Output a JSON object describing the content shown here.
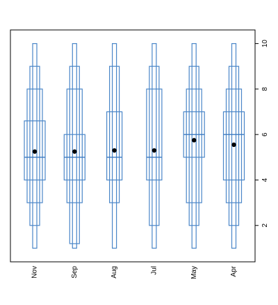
{
  "chart_data": {
    "type": "letter-value boxplot",
    "categories": [
      "Nov",
      "Sep",
      "Aug",
      "Jul",
      "May",
      "Apr"
    ],
    "y_axis": {
      "position": "right",
      "ticks": [
        2,
        4,
        6,
        8,
        10
      ],
      "ylim": [
        0.4,
        10.6
      ]
    },
    "color": "#4a86c8",
    "median_color": "#3a78c0",
    "mean_color": "#000000",
    "series": [
      {
        "category": "Nov",
        "mean": 5.25,
        "median": 5,
        "levels": [
          [
            1,
            10
          ],
          [
            2,
            9
          ],
          [
            3,
            8
          ],
          [
            4,
            6.6
          ]
        ]
      },
      {
        "category": "Sep",
        "mean": 5.25,
        "median": 5,
        "levels": [
          [
            1,
            10
          ],
          [
            1.2,
            9
          ],
          [
            3,
            8
          ],
          [
            4,
            6
          ]
        ]
      },
      {
        "category": "Aug",
        "mean": 5.3,
        "median": 5,
        "levels": [
          [
            1,
            10
          ],
          [
            3,
            9
          ],
          [
            4,
            7
          ]
        ]
      },
      {
        "category": "Jul",
        "mean": 5.3,
        "median": 5,
        "levels": [
          [
            1,
            10
          ],
          [
            2,
            9
          ],
          [
            4,
            8
          ]
        ]
      },
      {
        "category": "May",
        "mean": 5.75,
        "median": 6,
        "levels": [
          [
            1,
            10
          ],
          [
            2,
            9
          ],
          [
            3,
            8
          ],
          [
            5,
            7
          ]
        ]
      },
      {
        "category": "Apr",
        "mean": 5.55,
        "median": 6,
        "levels": [
          [
            1,
            10
          ],
          [
            2,
            9
          ],
          [
            3,
            8
          ],
          [
            4,
            7
          ]
        ]
      }
    ]
  }
}
